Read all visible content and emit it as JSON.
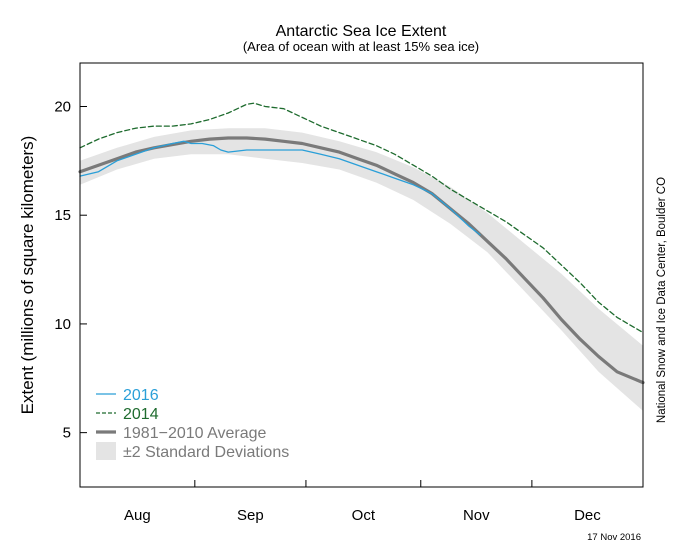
{
  "chart_data": {
    "type": "line",
    "title": "Antarctic Sea Ice Extent",
    "subtitle": "(Area of ocean with at least 15% sea ice)",
    "ylabel": "Extent (millions of square kilometers)",
    "xlabel": "",
    "ylim": [
      2.5,
      22
    ],
    "yticks": [
      5,
      10,
      15,
      20
    ],
    "x_range_days": [
      0,
      152
    ],
    "x_months": [
      {
        "label": "Aug",
        "start": 0,
        "end": 31
      },
      {
        "label": "Sep",
        "start": 31,
        "end": 61
      },
      {
        "label": "Oct",
        "start": 61,
        "end": 92
      },
      {
        "label": "Nov",
        "start": 92,
        "end": 122
      },
      {
        "label": "Dec",
        "start": 122,
        "end": 153
      }
    ],
    "grid": false,
    "legend_position": "bottom-left",
    "series": [
      {
        "name": "2016",
        "color": "#2a9fd8",
        "style": "solid",
        "x": [
          0,
          5,
          10,
          15,
          20,
          25,
          28,
          30,
          33,
          36,
          38,
          40,
          45,
          50,
          55,
          60,
          65,
          70,
          75,
          80,
          85,
          90,
          95,
          100,
          105,
          108
        ],
        "y": [
          16.8,
          17.0,
          17.5,
          17.8,
          18.1,
          18.3,
          18.4,
          18.3,
          18.3,
          18.2,
          18.0,
          17.9,
          18.0,
          18.0,
          18.0,
          18.0,
          17.8,
          17.6,
          17.3,
          17.0,
          16.7,
          16.4,
          16.0,
          15.3,
          14.5,
          14.1
        ]
      },
      {
        "name": "2014",
        "color": "#1e6b2e",
        "style": "dashed",
        "x": [
          0,
          5,
          10,
          15,
          20,
          25,
          30,
          35,
          40,
          45,
          47,
          50,
          55,
          60,
          65,
          70,
          75,
          80,
          85,
          90,
          95,
          100,
          105,
          110,
          115,
          120,
          125,
          130,
          135,
          140,
          145,
          152
        ],
        "y": [
          18.1,
          18.5,
          18.8,
          19.0,
          19.1,
          19.1,
          19.2,
          19.4,
          19.7,
          20.1,
          20.15,
          20.0,
          19.9,
          19.5,
          19.1,
          18.8,
          18.5,
          18.2,
          17.8,
          17.3,
          16.8,
          16.2,
          15.7,
          15.2,
          14.7,
          14.1,
          13.5,
          12.7,
          11.9,
          11.0,
          10.3,
          9.6
        ]
      },
      {
        "name": "1981−2010 Average",
        "color": "#7a7a7a",
        "style": "solid",
        "x": [
          0,
          5,
          10,
          15,
          20,
          25,
          30,
          35,
          40,
          45,
          50,
          55,
          60,
          65,
          70,
          75,
          80,
          85,
          90,
          95,
          100,
          105,
          110,
          115,
          120,
          125,
          130,
          135,
          140,
          145,
          152
        ],
        "y": [
          17.0,
          17.3,
          17.6,
          17.9,
          18.1,
          18.25,
          18.4,
          18.5,
          18.55,
          18.55,
          18.5,
          18.4,
          18.3,
          18.1,
          17.9,
          17.6,
          17.3,
          16.9,
          16.5,
          16.0,
          15.3,
          14.6,
          13.8,
          13.0,
          12.1,
          11.2,
          10.2,
          9.3,
          8.5,
          7.8,
          7.3
        ]
      }
    ],
    "band": {
      "name": "±2 Standard Deviations",
      "color": "#e4e4e4",
      "x": [
        0,
        10,
        20,
        30,
        40,
        50,
        60,
        70,
        80,
        90,
        100,
        110,
        120,
        130,
        140,
        152
      ],
      "upper": [
        17.5,
        18.1,
        18.6,
        18.9,
        19.0,
        19.0,
        18.8,
        18.4,
        17.9,
        17.2,
        16.3,
        15.1,
        13.7,
        12.3,
        10.7,
        9.0
      ],
      "lower": [
        16.4,
        17.1,
        17.6,
        17.8,
        17.8,
        17.6,
        17.4,
        17.1,
        16.5,
        15.7,
        14.6,
        13.3,
        11.5,
        9.7,
        7.8,
        6.0
      ]
    }
  },
  "credit": "National Snow and Ice Data Center, Boulder CO",
  "date_stamp": "17 Nov 2016"
}
